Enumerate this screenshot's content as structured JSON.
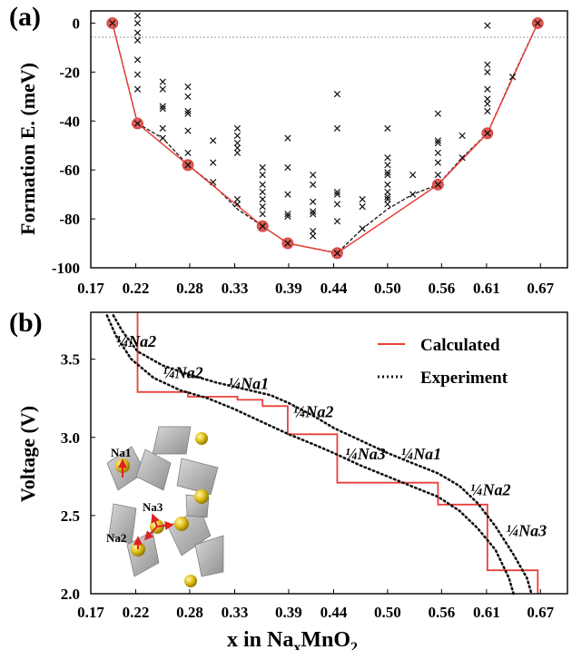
{
  "chart_data": [
    {
      "panel_label": "(a)",
      "type": "scatter",
      "ylabel": "Formation E. (meV)",
      "xlim": [
        0.17,
        0.7
      ],
      "ylim": [
        -100,
        5
      ],
      "x_ticks": [
        "0.17",
        "0.22",
        "0.28",
        "0.33",
        "0.39",
        "0.44",
        "0.50",
        "0.56",
        "0.61",
        "0.67"
      ],
      "y_ticks": [
        "0",
        "-20",
        "-40",
        "-60",
        "-80",
        "-100"
      ],
      "hull_points": [
        [
          0.194,
          0
        ],
        [
          0.222,
          -41
        ],
        [
          0.278,
          -58
        ],
        [
          0.361,
          -83
        ],
        [
          0.389,
          -90
        ],
        [
          0.444,
          -94
        ],
        [
          0.556,
          -66
        ],
        [
          0.611,
          -45
        ],
        [
          0.667,
          0
        ]
      ],
      "dashed_line": [
        [
          0.194,
          0
        ],
        [
          0.222,
          -41
        ],
        [
          0.25,
          -47
        ],
        [
          0.278,
          -58
        ],
        [
          0.306,
          -66
        ],
        [
          0.333,
          -76
        ],
        [
          0.361,
          -83
        ],
        [
          0.389,
          -90
        ],
        [
          0.417,
          -92
        ],
        [
          0.444,
          -94
        ],
        [
          0.472,
          -84
        ],
        [
          0.5,
          -76
        ],
        [
          0.528,
          -70
        ],
        [
          0.556,
          -66
        ],
        [
          0.583,
          -55
        ],
        [
          0.611,
          -45
        ],
        [
          0.639,
          -22
        ],
        [
          0.667,
          0
        ]
      ],
      "structures": [
        [
          0.222,
          3
        ],
        [
          0.222,
          0
        ],
        [
          0.222,
          -4
        ],
        [
          0.222,
          -7
        ],
        [
          0.222,
          -15
        ],
        [
          0.222,
          -21
        ],
        [
          0.222,
          -27
        ],
        [
          0.25,
          -24
        ],
        [
          0.25,
          -27
        ],
        [
          0.25,
          -34
        ],
        [
          0.25,
          -35
        ],
        [
          0.25,
          -43
        ],
        [
          0.25,
          -47
        ],
        [
          0.278,
          -26
        ],
        [
          0.278,
          -30
        ],
        [
          0.278,
          -36
        ],
        [
          0.278,
          -37
        ],
        [
          0.278,
          -44
        ],
        [
          0.278,
          -53
        ],
        [
          0.278,
          -58
        ],
        [
          0.306,
          -48
        ],
        [
          0.306,
          -57
        ],
        [
          0.306,
          -65
        ],
        [
          0.333,
          -43
        ],
        [
          0.333,
          -46
        ],
        [
          0.333,
          -49
        ],
        [
          0.333,
          -51
        ],
        [
          0.333,
          -53
        ],
        [
          0.333,
          -72
        ],
        [
          0.333,
          -74
        ],
        [
          0.361,
          -59
        ],
        [
          0.361,
          -62
        ],
        [
          0.361,
          -66
        ],
        [
          0.361,
          -69
        ],
        [
          0.361,
          -72
        ],
        [
          0.361,
          -75
        ],
        [
          0.361,
          -78
        ],
        [
          0.361,
          -83
        ],
        [
          0.389,
          -47
        ],
        [
          0.389,
          -59
        ],
        [
          0.389,
          -70
        ],
        [
          0.389,
          -78
        ],
        [
          0.389,
          -79
        ],
        [
          0.389,
          -90
        ],
        [
          0.417,
          -62
        ],
        [
          0.417,
          -66
        ],
        [
          0.417,
          -73
        ],
        [
          0.417,
          -77
        ],
        [
          0.417,
          -78
        ],
        [
          0.417,
          -85
        ],
        [
          0.417,
          -87
        ],
        [
          0.444,
          -29
        ],
        [
          0.444,
          -43
        ],
        [
          0.444,
          -69
        ],
        [
          0.444,
          -70
        ],
        [
          0.444,
          -74
        ],
        [
          0.444,
          -81
        ],
        [
          0.444,
          -94
        ],
        [
          0.472,
          -72
        ],
        [
          0.472,
          -75
        ],
        [
          0.472,
          -84
        ],
        [
          0.5,
          -43
        ],
        [
          0.5,
          -55
        ],
        [
          0.5,
          -58
        ],
        [
          0.5,
          -61
        ],
        [
          0.5,
          -62
        ],
        [
          0.5,
          -66
        ],
        [
          0.5,
          -69
        ],
        [
          0.5,
          -71
        ],
        [
          0.5,
          -72
        ],
        [
          0.5,
          -74
        ],
        [
          0.528,
          -62
        ],
        [
          0.528,
          -70
        ],
        [
          0.556,
          -37
        ],
        [
          0.556,
          -48
        ],
        [
          0.556,
          -49
        ],
        [
          0.556,
          -53
        ],
        [
          0.556,
          -57
        ],
        [
          0.556,
          -62
        ],
        [
          0.556,
          -66
        ],
        [
          0.583,
          -46
        ],
        [
          0.583,
          -55
        ],
        [
          0.611,
          -1
        ],
        [
          0.611,
          -17
        ],
        [
          0.611,
          -20
        ],
        [
          0.611,
          -27
        ],
        [
          0.611,
          -31
        ],
        [
          0.611,
          -33
        ],
        [
          0.611,
          -36
        ],
        [
          0.611,
          -45
        ],
        [
          0.639,
          -22
        ]
      ]
    },
    {
      "panel_label": "(b)",
      "type": "line",
      "xlabel_main": "x  in Na",
      "xlabel_sub1": "x",
      "xlabel_mid": "MnO",
      "xlabel_sub2": "2",
      "ylabel": "Voltage (V)",
      "xlim": [
        0.17,
        0.7
      ],
      "ylim": [
        2.0,
        3.8
      ],
      "x_ticks": [
        "0.17",
        "0.22",
        "0.28",
        "0.33",
        "0.39",
        "0.44",
        "0.50",
        "0.56",
        "0.61",
        "0.67"
      ],
      "y_ticks": [
        "3.5",
        "3.0",
        "2.5",
        "2.0"
      ],
      "series": [
        {
          "name": "Calculated",
          "style": "solid",
          "color": "#e8403a",
          "points": [
            [
              0.222,
              3.8
            ],
            [
              0.222,
              3.29
            ],
            [
              0.278,
              3.29
            ],
            [
              0.278,
              3.26
            ],
            [
              0.333,
              3.26
            ],
            [
              0.333,
              3.24
            ],
            [
              0.361,
              3.24
            ],
            [
              0.361,
              3.2
            ],
            [
              0.389,
              3.2
            ],
            [
              0.389,
              3.02
            ],
            [
              0.444,
              3.02
            ],
            [
              0.444,
              2.71
            ],
            [
              0.556,
              2.71
            ],
            [
              0.556,
              2.57
            ],
            [
              0.611,
              2.57
            ],
            [
              0.611,
              2.15
            ],
            [
              0.667,
              2.15
            ],
            [
              0.667,
              2.0
            ]
          ]
        },
        {
          "name": "Experiment",
          "style": "dotted",
          "color": "#111111",
          "points": [
            [
              0.195,
              3.78
            ],
            [
              0.205,
              3.68
            ],
            [
              0.222,
              3.55
            ],
            [
              0.25,
              3.46
            ],
            [
              0.28,
              3.4
            ],
            [
              0.31,
              3.35
            ],
            [
              0.34,
              3.31
            ],
            [
              0.37,
              3.27
            ],
            [
              0.39,
              3.22
            ],
            [
              0.42,
              3.13
            ],
            [
              0.44,
              3.06
            ],
            [
              0.47,
              2.98
            ],
            [
              0.5,
              2.9
            ],
            [
              0.53,
              2.83
            ],
            [
              0.556,
              2.77
            ],
            [
              0.58,
              2.69
            ],
            [
              0.6,
              2.58
            ],
            [
              0.62,
              2.43
            ],
            [
              0.64,
              2.25
            ],
            [
              0.655,
              2.1
            ],
            [
              0.66,
              2.0
            ]
          ]
        },
        {
          "name": "",
          "style": "dotted",
          "color": "#111111",
          "points": [
            [
              0.188,
              3.78
            ],
            [
              0.198,
              3.65
            ],
            [
              0.215,
              3.5
            ],
            [
              0.24,
              3.38
            ],
            [
              0.27,
              3.3
            ],
            [
              0.3,
              3.25
            ],
            [
              0.33,
              3.18
            ],
            [
              0.36,
              3.1
            ],
            [
              0.39,
              3.02
            ],
            [
              0.42,
              2.95
            ],
            [
              0.44,
              2.9
            ],
            [
              0.47,
              2.82
            ],
            [
              0.5,
              2.75
            ],
            [
              0.53,
              2.68
            ],
            [
              0.556,
              2.62
            ],
            [
              0.58,
              2.53
            ],
            [
              0.6,
              2.42
            ],
            [
              0.62,
              2.28
            ],
            [
              0.635,
              2.1
            ],
            [
              0.64,
              2.0
            ]
          ]
        }
      ],
      "legend": [
        "Calculated",
        "Experiment"
      ],
      "annotations": [
        {
          "text": "Na2",
          "x": 0.198,
          "y": 3.58
        },
        {
          "text": "Na2",
          "x": 0.25,
          "y": 3.38
        },
        {
          "text": "Na1",
          "x": 0.323,
          "y": 3.31
        },
        {
          "text": "Na2",
          "x": 0.395,
          "y": 3.13
        },
        {
          "text": "Na3",
          "x": 0.453,
          "y": 2.86
        },
        {
          "text": "Na1",
          "x": 0.515,
          "y": 2.86
        },
        {
          "text": "Na2",
          "x": 0.592,
          "y": 2.63
        },
        {
          "text": "Na3",
          "x": 0.632,
          "y": 2.37
        }
      ],
      "annotation_prefix": "¼",
      "inset_labels": [
        "Na1",
        "Na3",
        "Na2"
      ]
    }
  ]
}
